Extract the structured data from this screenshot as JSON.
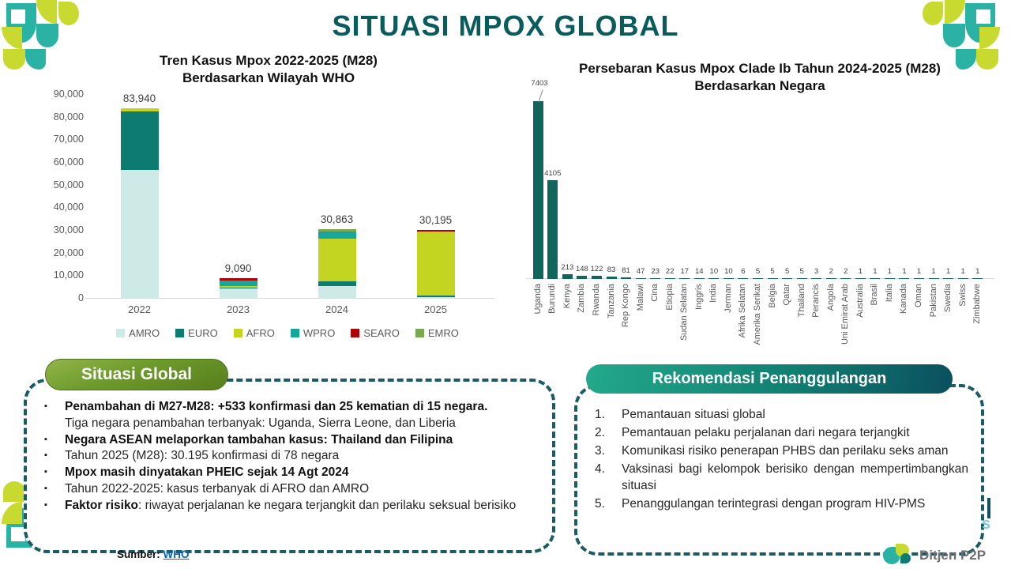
{
  "slide": {
    "title": "SITUASI MPOX GLOBAL"
  },
  "colors": {
    "accent_teal": "#0a5c5c",
    "dash_border": "#1b5b66",
    "pill_green": "#6d9a2c",
    "pill_teal": "#118073",
    "link_blue": "#0563c1",
    "ornament_teal": "#2ab3a4",
    "ornament_lime": "#c8da2f"
  },
  "chart_data": [
    {
      "type": "bar",
      "stacked": true,
      "title": "Tren Kasus Mpox 2022-2025 (M28)",
      "subtitle": "Berdasarkan Wilayah WHO",
      "categories": [
        "2022",
        "2023",
        "2024",
        "2025"
      ],
      "series": [
        {
          "name": "AMRO",
          "color": "#cdeae6",
          "values": [
            57000,
            4500,
            5600,
            800
          ]
        },
        {
          "name": "EURO",
          "color": "#0e7b70",
          "values": [
            25740,
            400,
            2200,
            600
          ]
        },
        {
          "name": "AFRO",
          "color": "#c3d521",
          "values": [
            1200,
            700,
            18800,
            28300
          ]
        },
        {
          "name": "WPRO",
          "color": "#16a69c",
          "values": [
            0,
            2600,
            3100,
            0
          ]
        },
        {
          "name": "SEARO",
          "color": "#ab0509",
          "values": [
            0,
            890,
            0,
            495
          ]
        },
        {
          "name": "EMRO",
          "color": "#79a84f",
          "values": [
            0,
            0,
            1163,
            0
          ]
        }
      ],
      "totals": [
        83940,
        9090,
        30863,
        30195
      ],
      "totals_labels": [
        "83,940",
        "9,090",
        "30,863",
        "30,195"
      ],
      "ylim": [
        0,
        90000
      ],
      "yticks_labels": [
        "90,000",
        "80,000",
        "70,000",
        "60,000",
        "50,000",
        "40,000",
        "30,000",
        "20,000",
        "10,000",
        "0"
      ],
      "grid": false,
      "legend_position": "bottom"
    },
    {
      "type": "bar",
      "title": "Persebaran Kasus Mpox Clade Ib Tahun 2024-2025 (M28)",
      "subtitle": "Berdasarkan Negara",
      "bar_color": "#10655c",
      "categories": [
        "Uganda",
        "Burundi",
        "Kenya",
        "Zambia",
        "Rwanda",
        "Tanzania",
        "Rep Kongo",
        "Malawi",
        "Cina",
        "Etiopia",
        "Sudan Selatan",
        "Inggris",
        "India",
        "Jerman",
        "Afrika Selatan",
        "Amerika Serikat",
        "Belgia",
        "Qatar",
        "Thailand",
        "Perancis",
        "Angola",
        "Uni Emirat Arab",
        "Australia",
        "Brasil",
        "Italia",
        "Kanada",
        "Oman",
        "Pakistan",
        "Swedia",
        "Swiss",
        "Zimbabwe"
      ],
      "values": [
        7403,
        4105,
        213,
        148,
        122,
        83,
        81,
        47,
        23,
        22,
        17,
        14,
        10,
        10,
        6,
        5,
        5,
        5,
        5,
        3,
        2,
        2,
        1,
        1,
        1,
        1,
        1,
        1,
        1,
        1,
        1
      ],
      "grid": false,
      "legend_position": "none"
    }
  ],
  "situasi_global": {
    "header": "Situasi Global",
    "bullets": [
      {
        "style": "bold",
        "marker": true,
        "text": "Penambahan di M27-M28: +533 konfirmasi dan 25 kematian di 15  negara."
      },
      {
        "style": "normal",
        "marker": false,
        "text": "Tiga negara penambahan terbanyak: Uganda, Sierra Leone, dan Liberia"
      },
      {
        "style": "bold",
        "marker": true,
        "text": "Negara ASEAN melaporkan tambahan kasus: Thailand dan Filipina"
      },
      {
        "style": "normal",
        "marker": true,
        "text": "Tahun 2025 (M28): 30.195 konfirmasi di 78 negara"
      },
      {
        "style": "bold",
        "marker": true,
        "text": "Mpox masih dinyatakan PHEIC sejak 14 Agt 2024"
      },
      {
        "style": "normal",
        "marker": true,
        "text": "Tahun 2022-2025: kasus terbanyak di AFRO dan AMRO"
      },
      {
        "style": "mixed",
        "marker": true,
        "bold": "Faktor risiko",
        "text": ": riwayat perjalanan ke negara terjangkit dan perilaku seksual berisiko"
      }
    ]
  },
  "rekomendasi": {
    "header": "Rekomendasi Penanggulangan",
    "items": [
      "Pemantauan situasi global",
      "Pemantauan pelaku perjalanan dari negara terjangkit",
      "Komunikasi risiko penerapan PHBS dan perilaku seks aman",
      "Vaksinasi bagi kelompok berisiko dengan mempertimbangkan situasi",
      "Penanggulangan terintegrasi dengan program HIV-PMS"
    ]
  },
  "footer": {
    "sumber_label": "Sumber:",
    "sumber_link": "WHO",
    "logo_text": "Ditjen P2P",
    "watermark": "s"
  }
}
